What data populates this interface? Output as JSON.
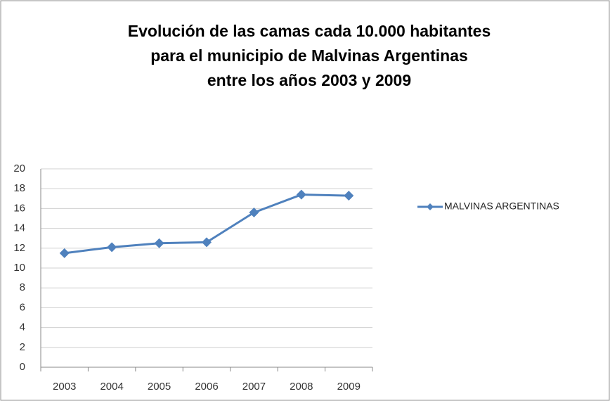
{
  "chart_data": {
    "type": "line",
    "title": [
      "Evolución de las camas cada 10.000 habitantes",
      "para el municipio de Malvinas Argentinas",
      "entre los años 2003 y 2009"
    ],
    "categories": [
      "2003",
      "2004",
      "2005",
      "2006",
      "2007",
      "2008",
      "2009"
    ],
    "series": [
      {
        "name": "MALVINAS ARGENTINAS",
        "color": "#4f81bd",
        "values": [
          11.5,
          12.1,
          12.5,
          12.6,
          15.6,
          17.4,
          17.3
        ]
      }
    ],
    "ylim": [
      0,
      20
    ],
    "yticks": [
      0,
      2,
      4,
      6,
      8,
      10,
      12,
      14,
      16,
      18,
      20
    ],
    "grid": true,
    "legend": "right"
  }
}
